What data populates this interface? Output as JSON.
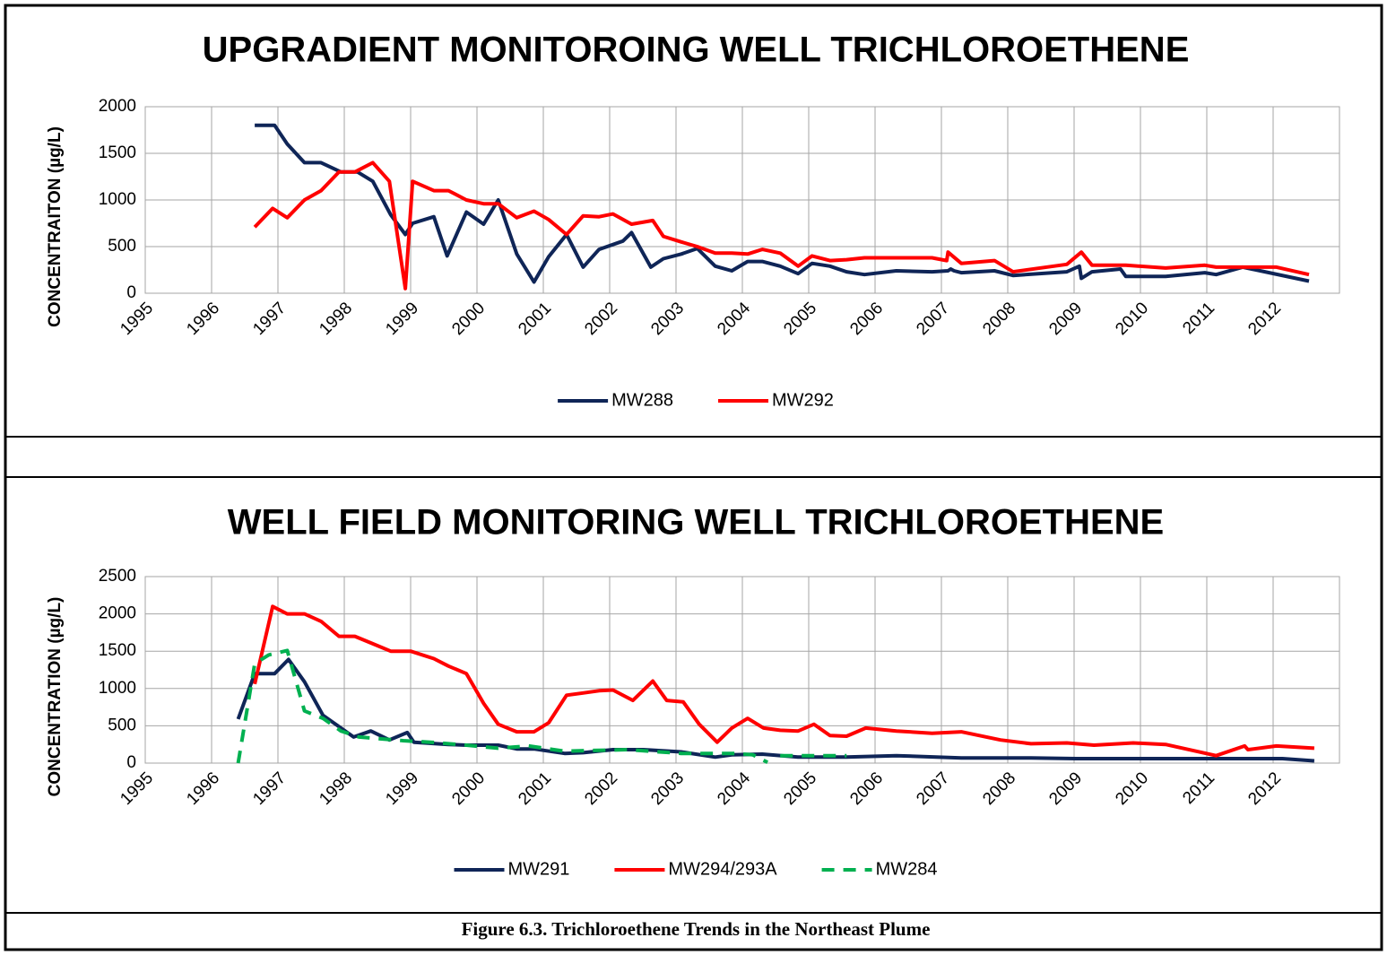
{
  "chart_data": [
    {
      "type": "line",
      "title": "UPGRADIENT MONITOROING WELL TRICHLOROETHENE",
      "y_label": "CONCENTRAITON (µg/L)",
      "xlim": [
        1995,
        2013
      ],
      "xticks": [
        1995,
        1996,
        1997,
        1998,
        1999,
        2000,
        2001,
        2002,
        2003,
        2004,
        2005,
        2006,
        2007,
        2008,
        2009,
        2010,
        2011,
        2012
      ],
      "ylim": [
        0,
        2000
      ],
      "yticks": [
        0,
        500,
        1000,
        1500,
        2000
      ],
      "grid": true,
      "legend": "bottom",
      "series": [
        {
          "name": "MW288",
          "color": "#0f2557",
          "style": "solid",
          "x": [
            1996.65,
            1996.95,
            1997.14,
            1997.4,
            1997.65,
            1997.95,
            1998.2,
            1998.43,
            1998.7,
            1998.92,
            1999.03,
            1999.35,
            1999.55,
            1999.84,
            2000.1,
            2000.32,
            2000.6,
            2000.86,
            2001.08,
            2001.35,
            2001.6,
            2001.84,
            2002.2,
            2002.33,
            2002.62,
            2002.81,
            2003.08,
            2003.32,
            2003.59,
            2003.84,
            2004.08,
            2004.3,
            2004.57,
            2004.84,
            2005.05,
            2005.32,
            2005.57,
            2005.84,
            2006.32,
            2006.86,
            2007.1,
            2007.14,
            2007.19,
            2007.3,
            2007.8,
            2008.08,
            2008.89,
            2009.08,
            2009.11,
            2009.27,
            2009.7,
            2009.78,
            2010.38,
            2010.97,
            2011.14,
            2011.54,
            2012.54
          ],
          "values": [
            1800,
            1800,
            1600,
            1400,
            1400,
            1300,
            1300,
            1200,
            840,
            630,
            750,
            820,
            400,
            870,
            740,
            1000,
            420,
            120,
            390,
            630,
            280,
            470,
            560,
            650,
            280,
            370,
            420,
            480,
            290,
            240,
            340,
            340,
            290,
            210,
            320,
            290,
            230,
            200,
            240,
            230,
            240,
            260,
            240,
            220,
            240,
            190,
            230,
            290,
            160,
            230,
            260,
            180,
            180,
            220,
            200,
            280,
            130
          ]
        },
        {
          "name": "MW292",
          "color": "#ff0000",
          "style": "solid",
          "x": [
            1996.65,
            1996.92,
            1997.14,
            1997.4,
            1997.65,
            1997.92,
            1998.16,
            1998.43,
            1998.68,
            1998.92,
            1999.03,
            1999.35,
            1999.57,
            1999.84,
            2000.1,
            2000.32,
            2000.6,
            2000.86,
            2001.08,
            2001.35,
            2001.6,
            2001.84,
            2002.05,
            2002.33,
            2002.65,
            2002.81,
            2003.08,
            2003.32,
            2003.59,
            2003.84,
            2004.08,
            2004.3,
            2004.57,
            2004.84,
            2005.05,
            2005.32,
            2005.57,
            2005.84,
            2006.32,
            2006.86,
            2007.08,
            2007.1,
            2007.3,
            2007.8,
            2008.08,
            2008.89,
            2009.11,
            2009.27,
            2009.78,
            2010.38,
            2010.97,
            2011.14,
            2011.54,
            2012.05,
            2012.54
          ],
          "values": [
            710,
            910,
            810,
            1000,
            1100,
            1300,
            1300,
            1400,
            1200,
            50,
            1200,
            1100,
            1100,
            1000,
            960,
            960,
            810,
            880,
            790,
            630,
            830,
            820,
            850,
            740,
            780,
            610,
            550,
            500,
            430,
            430,
            420,
            470,
            430,
            290,
            400,
            350,
            360,
            380,
            380,
            380,
            350,
            440,
            320,
            350,
            230,
            310,
            440,
            300,
            300,
            270,
            300,
            280,
            280,
            280,
            200
          ]
        }
      ]
    },
    {
      "type": "line",
      "title": "WELL FIELD MONITORING WELL TRICHLOROETHENE",
      "y_label": "CONCENTRATION (µg/L)",
      "xlim": [
        1995,
        2013
      ],
      "xticks": [
        1995,
        1996,
        1997,
        1998,
        1999,
        2000,
        2001,
        2002,
        2003,
        2004,
        2005,
        2006,
        2007,
        2008,
        2009,
        2010,
        2011,
        2012
      ],
      "ylim": [
        0,
        2500
      ],
      "yticks": [
        0,
        500,
        1000,
        1500,
        2000,
        2500
      ],
      "grid": true,
      "legend": "bottom",
      "series": [
        {
          "name": "MW291",
          "color": "#0f2557",
          "style": "solid",
          "x": [
            1996.4,
            1996.65,
            1996.95,
            1997.16,
            1997.4,
            1997.68,
            1997.95,
            1998.14,
            1998.4,
            1998.68,
            1998.95,
            1999.05,
            1999.57,
            1999.84,
            2000.32,
            2000.6,
            2000.86,
            2001.32,
            2001.6,
            2002.05,
            2002.51,
            2003.08,
            2003.59,
            2003.84,
            2004.3,
            2004.84,
            2005.57,
            2006.32,
            2007.3,
            2008.35,
            2009.03,
            2010.38,
            2011.73,
            2012.14,
            2012.62
          ],
          "values": [
            590,
            1200,
            1200,
            1390,
            1090,
            640,
            470,
            350,
            430,
            310,
            410,
            280,
            250,
            240,
            240,
            190,
            190,
            130,
            140,
            180,
            180,
            150,
            80,
            110,
            120,
            80,
            80,
            100,
            70,
            70,
            60,
            60,
            60,
            60,
            30
          ]
        },
        {
          "name": "MW294/293A",
          "color": "#ff0000",
          "style": "solid",
          "x": [
            1996.65,
            1996.92,
            1997.14,
            1997.4,
            1997.65,
            1997.92,
            1998.16,
            1998.43,
            1998.7,
            1999.0,
            1999.35,
            1999.57,
            1999.84,
            2000.1,
            2000.32,
            2000.6,
            2000.86,
            2001.08,
            2001.35,
            2001.6,
            2001.84,
            2002.05,
            2002.35,
            2002.65,
            2002.86,
            2003.11,
            2003.35,
            2003.62,
            2003.84,
            2004.08,
            2004.32,
            2004.57,
            2004.84,
            2005.08,
            2005.32,
            2005.57,
            2005.86,
            2006.32,
            2006.86,
            2007.3,
            2007.89,
            2008.35,
            2008.89,
            2009.3,
            2009.89,
            2010.38,
            2011.14,
            2011.57,
            2011.62,
            2012.05,
            2012.62
          ],
          "values": [
            1060,
            2100,
            2000,
            2000,
            1900,
            1700,
            1700,
            1600,
            1500,
            1500,
            1400,
            1300,
            1200,
            800,
            520,
            420,
            420,
            540,
            910,
            940,
            970,
            980,
            840,
            1100,
            840,
            820,
            520,
            280,
            470,
            600,
            470,
            440,
            430,
            520,
            370,
            360,
            470,
            430,
            400,
            420,
            310,
            260,
            270,
            240,
            270,
            250,
            100,
            230,
            180,
            230,
            200
          ]
        },
        {
          "name": "MW284",
          "color": "#00b050",
          "style": "dashed",
          "x": [
            1996.4,
            1996.65,
            1996.86,
            1997.14,
            1997.4,
            1997.68,
            1997.95,
            1998.22,
            1998.89,
            1999.3,
            1999.84,
            2000.32,
            2000.78,
            2001.32,
            2002.27,
            2003.08,
            2003.89,
            2004.16,
            2004.38,
            2004.45,
            2004.57,
            2005.57
          ],
          "values": [
            0,
            1330,
            1450,
            1510,
            700,
            600,
            430,
            350,
            300,
            280,
            240,
            200,
            230,
            160,
            180,
            130,
            130,
            110,
            10,
            null,
            100,
            100
          ]
        }
      ]
    }
  ],
  "caption": "Figure 6.3. Trichloroethene Trends in the Northeast Plume"
}
